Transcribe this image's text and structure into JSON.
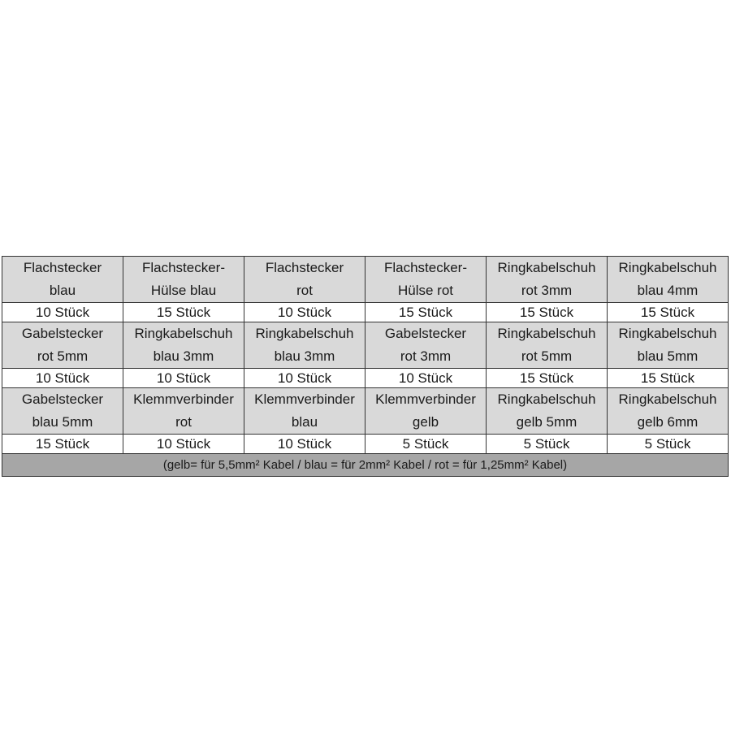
{
  "rows": [
    {
      "names": [
        [
          "Flachstecker",
          "blau"
        ],
        [
          "Flachstecker-",
          "Hülse blau"
        ],
        [
          "Flachstecker",
          "rot"
        ],
        [
          "Flachstecker-",
          "Hülse rot"
        ],
        [
          "Ringkabelschuh",
          "rot 3mm"
        ],
        [
          "Ringkabelschuh",
          "blau 4mm"
        ]
      ],
      "counts": [
        "10 Stück",
        "15 Stück",
        "10 Stück",
        "15 Stück",
        "15 Stück",
        "15 Stück"
      ]
    },
    {
      "names": [
        [
          "Gabelstecker",
          "rot 5mm"
        ],
        [
          "Ringkabelschuh",
          "blau 3mm"
        ],
        [
          "Ringkabelschuh",
          "blau 3mm"
        ],
        [
          "Gabelstecker",
          "rot 3mm"
        ],
        [
          "Ringkabelschuh",
          "rot 5mm"
        ],
        [
          "Ringkabelschuh",
          "blau 5mm"
        ]
      ],
      "counts": [
        "10 Stück",
        "10 Stück",
        "10 Stück",
        "10 Stück",
        "15 Stück",
        "15 Stück"
      ]
    },
    {
      "names": [
        [
          "Gabelstecker",
          "blau 5mm"
        ],
        [
          "Klemmverbinder",
          "rot"
        ],
        [
          "Klemmverbinder",
          "blau"
        ],
        [
          "Klemmverbinder",
          "gelb"
        ],
        [
          "Ringkabelschuh",
          "gelb 5mm"
        ],
        [
          "Ringkabelschuh",
          "gelb 6mm"
        ]
      ],
      "counts": [
        "15 Stück",
        "10 Stück",
        "10 Stück",
        "5 Stück",
        "5 Stück",
        "5 Stück"
      ]
    }
  ],
  "footer": "(gelb= für 5,5mm² Kabel  /  blau = für 2mm² Kabel  /  rot = für 1,25mm² Kabel)",
  "colors": {
    "name_bg": "#d9d9d9",
    "count_bg": "#ffffff",
    "footer_bg": "#a6a6a6",
    "border": "#333333"
  }
}
